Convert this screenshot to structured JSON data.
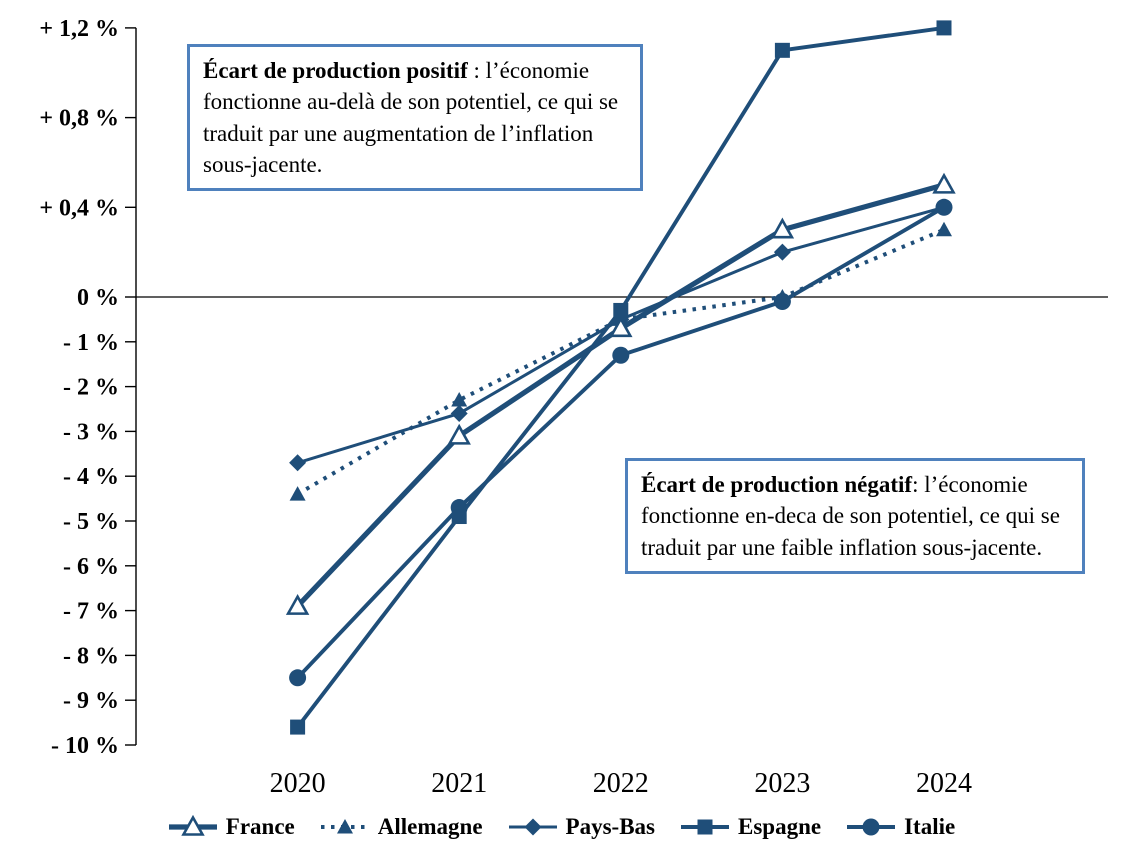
{
  "colors": {
    "series_line": "#1F4E79",
    "note_box_border": "#4F81BD",
    "axis": "#000000",
    "background": "#FFFFFF"
  },
  "chart_data": {
    "type": "line",
    "title": "",
    "xlabel": "",
    "ylabel": "",
    "categories": [
      "2020",
      "2021",
      "2022",
      "2023",
      "2024"
    ],
    "series": [
      {
        "name": "France",
        "marker": "open-triangle",
        "line_style": "solid-thick",
        "values": [
          -6.9,
          -3.1,
          -0.7,
          0.3,
          0.5
        ]
      },
      {
        "name": "Allemagne",
        "marker": "filled-triangle",
        "line_style": "dotted",
        "values": [
          -4.4,
          -2.3,
          -0.5,
          0.0,
          0.3
        ]
      },
      {
        "name": "Pays-Bas",
        "marker": "diamond",
        "line_style": "solid",
        "values": [
          -3.7,
          -2.6,
          -0.5,
          0.2,
          0.4
        ]
      },
      {
        "name": "Espagne",
        "marker": "square",
        "line_style": "solid-medium",
        "values": [
          -9.6,
          -4.9,
          -0.3,
          1.1,
          1.2
        ]
      },
      {
        "name": "Italie",
        "marker": "circle",
        "line_style": "solid-medium",
        "values": [
          -8.5,
          -4.7,
          -1.3,
          -0.1,
          0.4
        ]
      }
    ],
    "y_axis": {
      "ticks": [
        {
          "label": "+ 1,2 %",
          "value": 1.2
        },
        {
          "label": "+ 0,8 %",
          "value": 0.8
        },
        {
          "label": "+ 0,4 %",
          "value": 0.4
        },
        {
          "label": "0 %",
          "value": 0
        },
        {
          "label": "- 1 %",
          "value": -1
        },
        {
          "label": "- 2 %",
          "value": -2
        },
        {
          "label": "- 3 %",
          "value": -3
        },
        {
          "label": "- 4 %",
          "value": -4
        },
        {
          "label": "- 5 %",
          "value": -5
        },
        {
          "label": "- 6 %",
          "value": -6
        },
        {
          "label": "- 7 %",
          "value": -7
        },
        {
          "label": "- 8 %",
          "value": -8
        },
        {
          "label": "- 9 %",
          "value": -9
        },
        {
          "label": "- 10 %",
          "value": -10
        }
      ],
      "range": [
        -10,
        1.2
      ],
      "scale_note": "non-linear axis: 0.4 % per division above zero, 1 % per division below zero"
    },
    "grid": false,
    "legend_position": "bottom",
    "zero_line": true
  },
  "annotations": {
    "positive_box": {
      "bold": "Écart de production positif",
      "rest": " : l’économie fonctionne au-delà de son potentiel, ce qui se traduit par une augmentation de l’inflation sous-jacente."
    },
    "negative_box": {
      "bold": "Écart de production négatif",
      "rest": ": l’économie fonctionne en-deca de son potentiel, ce qui se traduit par une faible inflation sous-jacente."
    }
  }
}
